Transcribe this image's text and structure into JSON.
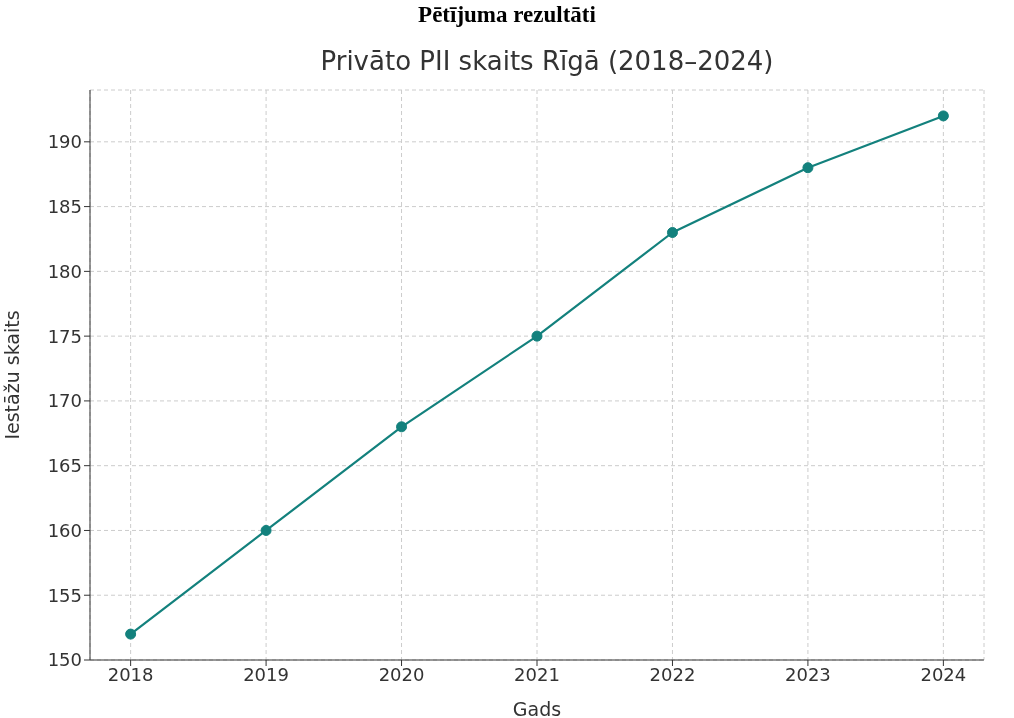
{
  "chart_data": {
    "type": "line",
    "title": "Pētījuma rezultāti",
    "subtitle": "Privāto PII skaits Rīgā (2018–2024)",
    "xlabel": "Gads",
    "ylabel": "Iestāžu skaits",
    "x": [
      2018,
      2019,
      2020,
      2021,
      2022,
      2023,
      2024
    ],
    "series": [
      {
        "color": "#13817d",
        "values": [
          152,
          160,
          168,
          175,
          183,
          188,
          192
        ]
      }
    ],
    "xlim": [
      2017.7,
      2024.3
    ],
    "xticks": [
      2018,
      2019,
      2020,
      2021,
      2022,
      2023,
      2024
    ],
    "ylim": [
      150,
      194
    ],
    "yticks": [
      150,
      155,
      160,
      165,
      170,
      175,
      180,
      185,
      190
    ],
    "grid": true,
    "marker": "circle",
    "line_style": "solid",
    "legend": false
  }
}
